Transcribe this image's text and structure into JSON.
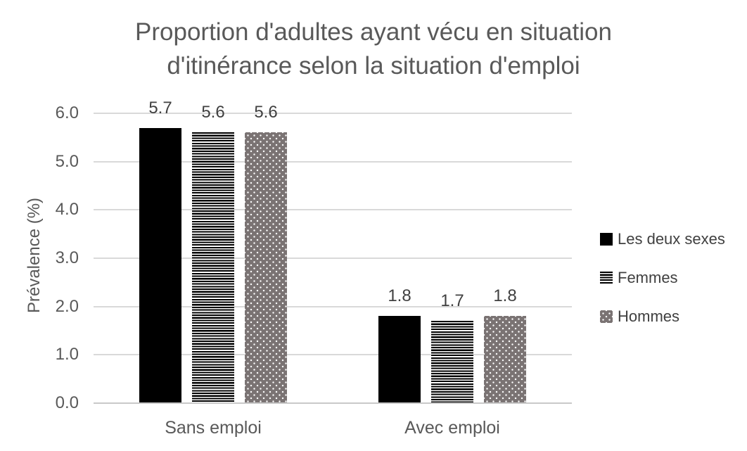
{
  "chart_data": {
    "type": "bar",
    "title": "Proportion d'adultes ayant vécu en situation d'itinérance selon la situation d'emploi",
    "title_lines": [
      "Proportion d'adultes ayant vécu en situation",
      "d'itinérance selon la situation d'emploi"
    ],
    "categories": [
      "Sans emploi",
      "Avec emploi"
    ],
    "series": [
      {
        "name": "Les deux sexes",
        "pattern": "solid",
        "color": "#000000",
        "values": [
          5.7,
          1.8
        ]
      },
      {
        "name": "Femmes",
        "pattern": "horizontal-stripes",
        "color": "#000000",
        "values": [
          5.6,
          1.7
        ]
      },
      {
        "name": "Hommes",
        "pattern": "dots",
        "color": "#7a7373",
        "values": [
          5.6,
          1.8
        ]
      }
    ],
    "xlabel": "",
    "ylabel": "Prévalence (%)",
    "ylim": [
      0,
      6
    ],
    "yticks": [
      0,
      1,
      2,
      3,
      4,
      5,
      6
    ],
    "ytick_labels": [
      "0.0",
      "1.0",
      "2.0",
      "3.0",
      "4.0",
      "5.0",
      "6.0"
    ],
    "grid": true,
    "data_labels": true,
    "legend_position": "right",
    "colors": {
      "grid": "#d9d9d9",
      "axis": "#c9c9c9",
      "title_text": "#595959",
      "axis_text": "#595959",
      "data_label_text": "#404040"
    }
  }
}
